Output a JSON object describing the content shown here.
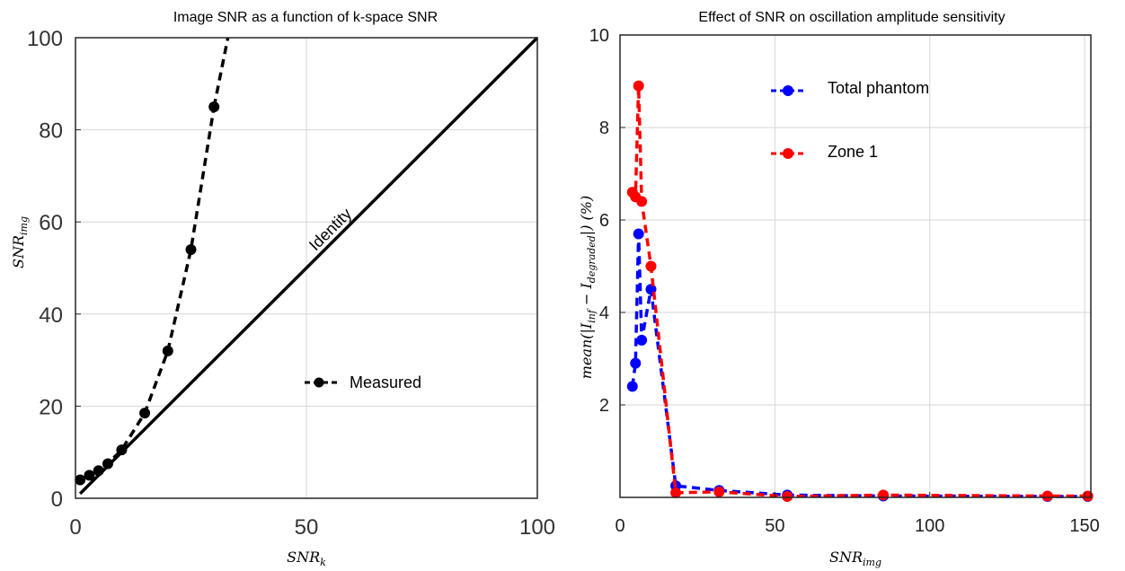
{
  "chart_data": [
    {
      "type": "line",
      "title": "Image SNR as a function of k-space SNR",
      "xlabel": "SNR_k",
      "ylabel": "SNR_img",
      "xlim": [
        0,
        100
      ],
      "ylim": [
        0,
        100
      ],
      "xticks": [
        0,
        50,
        100
      ],
      "yticks": [
        0,
        20,
        40,
        60,
        80,
        100
      ],
      "grid": true,
      "series": [
        {
          "name": "Measured",
          "style": "dashed-markers",
          "color": "#000000",
          "x": [
            1,
            3,
            5,
            7,
            10,
            15,
            20,
            25,
            30
          ],
          "y": [
            4,
            5,
            6,
            7.5,
            10.5,
            18.5,
            32,
            54,
            85
          ],
          "fit_extension": [
            [
              30,
              85
            ],
            [
              33,
              100
            ]
          ]
        },
        {
          "name": "Identity",
          "style": "solid",
          "color": "#000000",
          "x": [
            1,
            100
          ],
          "y": [
            1,
            100
          ],
          "label": "Identity"
        }
      ],
      "legend": "center-right"
    },
    {
      "type": "line",
      "title": "Effect of SNR on oscillation amplitude sensitivity",
      "xlabel": "SNR_img",
      "ylabel": "mean(|I_inf − I_degraded|) (%)",
      "xlim": [
        0,
        152
      ],
      "ylim": [
        0,
        10
      ],
      "xticks": [
        0,
        50,
        100,
        150
      ],
      "yticks": [
        2,
        4,
        6,
        8,
        10
      ],
      "grid": true,
      "series": [
        {
          "name": "Total phantom",
          "style": "dashed-markers",
          "color": "#0000ff",
          "x": [
            4,
            5,
            6,
            7,
            10,
            18,
            32,
            54,
            85,
            138,
            151
          ],
          "y": [
            2.4,
            2.9,
            5.7,
            3.4,
            4.5,
            0.25,
            0.15,
            0.05,
            0.03,
            0.02,
            0.02
          ]
        },
        {
          "name": "Zone 1",
          "style": "dashed-markers",
          "color": "#ff0000",
          "x": [
            4,
            5,
            6,
            7,
            10,
            18,
            32,
            54,
            85,
            138,
            151
          ],
          "y": [
            6.6,
            6.5,
            8.9,
            6.4,
            5.0,
            0.1,
            0.12,
            0.02,
            0.05,
            0.03,
            0.03
          ]
        }
      ],
      "legend": "top-center"
    }
  ]
}
